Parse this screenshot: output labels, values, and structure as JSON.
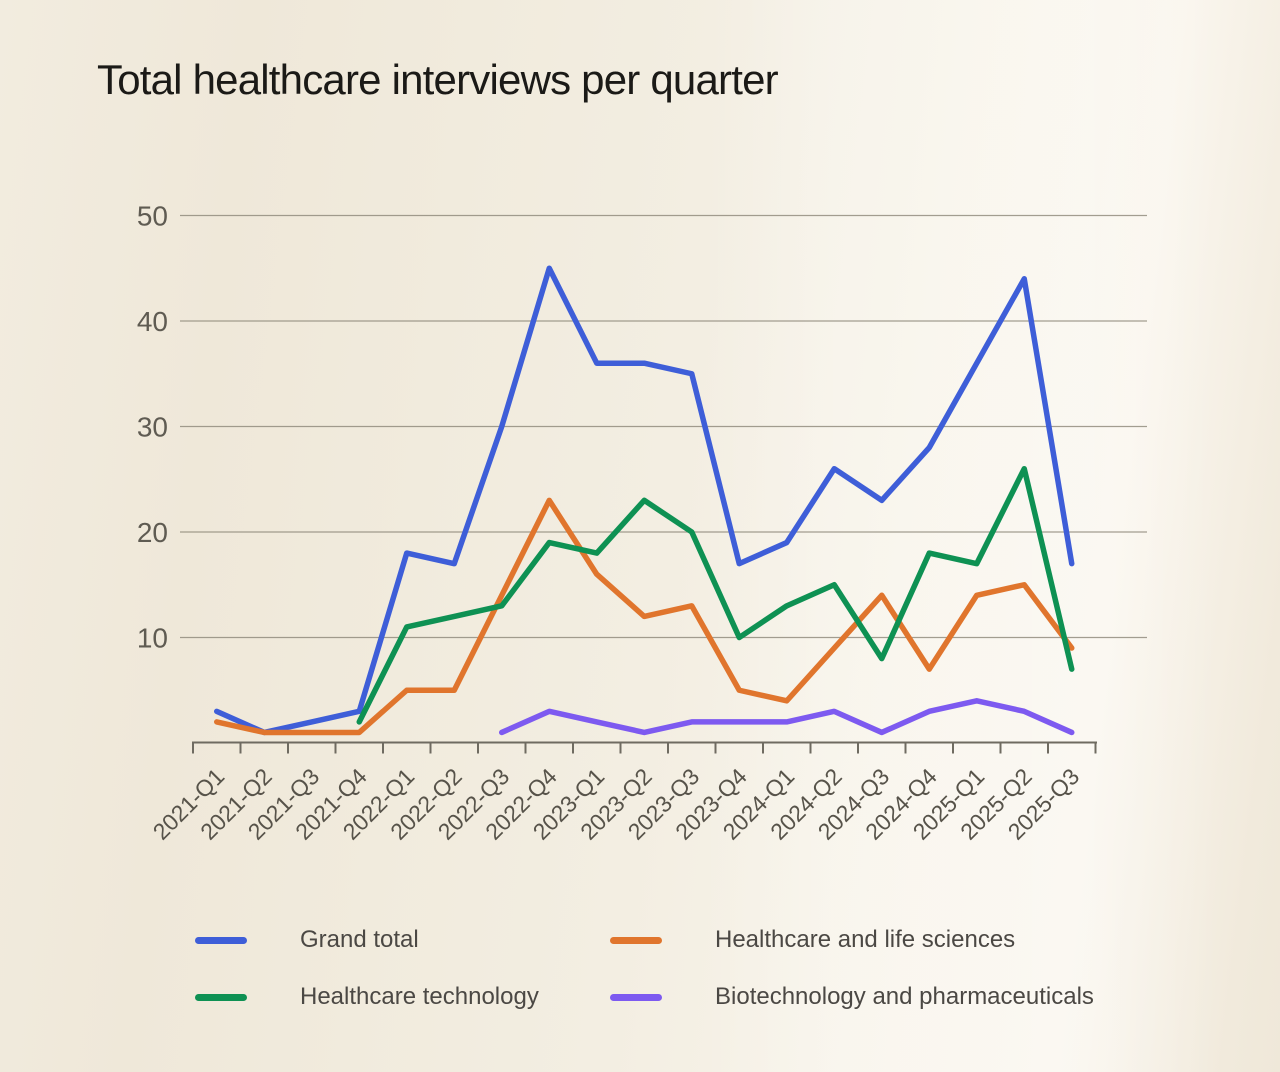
{
  "title": "Total healthcare interviews per quarter",
  "chart_data": {
    "type": "line",
    "categories": [
      "2021-Q1",
      "2021-Q2",
      "2021-Q3",
      "2021-Q4",
      "2022-Q1",
      "2022-Q2",
      "2022-Q3",
      "2022-Q4",
      "2023-Q1",
      "2023-Q2",
      "2023-Q3",
      "2023-Q4",
      "2024-Q1",
      "2024-Q2",
      "2024-Q3",
      "2024-Q4",
      "2025-Q1",
      "2025-Q2",
      "2025-Q3"
    ],
    "yticks": [
      10,
      20,
      30,
      40,
      50
    ],
    "ylim": [
      0,
      50
    ],
    "grid": "horizontal",
    "legend_position": "bottom",
    "series": [
      {
        "name": "Grand total",
        "color": "#3e5ed8",
        "values": [
          3,
          1,
          2,
          3,
          18,
          17,
          30,
          45,
          36,
          36,
          35,
          17,
          19,
          26,
          23,
          28,
          36,
          44,
          17
        ]
      },
      {
        "name": "Healthcare and life sciences",
        "color": "#e0752d",
        "values": [
          2,
          1,
          1,
          1,
          5,
          5,
          14,
          23,
          16,
          12,
          13,
          5,
          4,
          9,
          14,
          7,
          14,
          15,
          9
        ]
      },
      {
        "name": "Healthcare technology",
        "color": "#0e9153",
        "values": [
          null,
          null,
          null,
          2,
          11,
          12,
          13,
          19,
          18,
          23,
          20,
          10,
          13,
          15,
          8,
          18,
          17,
          26,
          7
        ]
      },
      {
        "name": "Biotechnology and pharmaceuticals",
        "color": "#7d5af0",
        "values": [
          null,
          null,
          null,
          null,
          null,
          null,
          1,
          3,
          2,
          1,
          2,
          2,
          2,
          3,
          1,
          3,
          4,
          3,
          1
        ]
      }
    ]
  }
}
